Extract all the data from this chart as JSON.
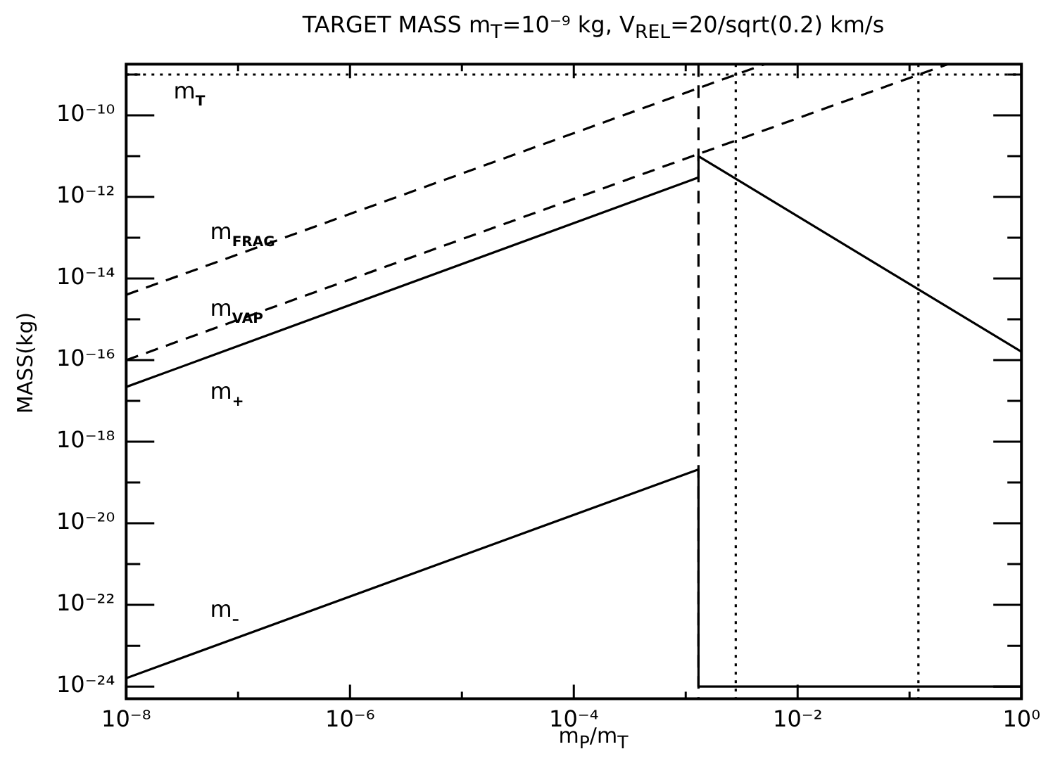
{
  "chart_data": {
    "type": "line",
    "title": "TARGET MASS m$_{T}$=10⁻⁹ kg, V$_{REL}$=20/sqrt(0.2) km/s",
    "xlabel": "m$_{P}$/m$_{T}$",
    "ylabel": "MASS(kg)",
    "log": "xy",
    "grid": false,
    "legend": false,
    "marker": "none",
    "xlim": [
      1e-08,
      1
    ],
    "ylim": [
      5e-25,
      1.8e-09
    ],
    "xticks": [
      {
        "value": 1e-08,
        "label": "10⁻⁸"
      },
      {
        "value": 1e-07,
        "label": null
      },
      {
        "value": 1e-06,
        "label": "10⁻⁶"
      },
      {
        "value": 1e-05,
        "label": null
      },
      {
        "value": 0.0001,
        "label": "10⁻⁴"
      },
      {
        "value": 0.001,
        "label": null
      },
      {
        "value": 0.01,
        "label": "10⁻²"
      },
      {
        "value": 0.1,
        "label": null
      },
      {
        "value": 1,
        "label": "10⁰"
      }
    ],
    "yticks": [
      {
        "value": 1e-24,
        "label": "10⁻²⁴"
      },
      {
        "value": 1e-23,
        "label": null
      },
      {
        "value": 1e-22,
        "label": "10⁻²²"
      },
      {
        "value": 1e-21,
        "label": null
      },
      {
        "value": 1e-20,
        "label": "10⁻²⁰"
      },
      {
        "value": 1e-19,
        "label": null
      },
      {
        "value": 1e-18,
        "label": "10⁻¹⁸"
      },
      {
        "value": 1e-17,
        "label": null
      },
      {
        "value": 1e-16,
        "label": "10⁻¹⁶"
      },
      {
        "value": 1e-15,
        "label": null
      },
      {
        "value": 1e-14,
        "label": "10⁻¹⁴"
      },
      {
        "value": 1e-13,
        "label": null
      },
      {
        "value": 1e-12,
        "label": "10⁻¹²"
      },
      {
        "value": 1e-11,
        "label": null
      },
      {
        "value": 1e-10,
        "label": "10⁻¹⁰"
      },
      {
        "value": 1e-09,
        "label": null
      }
    ],
    "series": [
      {
        "name": "m$_{T}$",
        "color": "#000000",
        "line_style": "dotted",
        "x": [
          1e-08,
          1
        ],
        "values": [
          1e-09,
          1e-09
        ]
      },
      {
        "name": "m$_{FRAG}$",
        "color": "#000000",
        "line_style": "dashed",
        "x": [
          1e-08,
          0.0051
        ],
        "values": [
          4e-15,
          1.8e-09
        ]
      },
      {
        "name": "m$_{VAP}$",
        "color": "#000000",
        "line_style": "dashed",
        "x": [
          1e-08,
          0.22
        ],
        "values": [
          1e-16,
          1.8e-09
        ]
      },
      {
        "name": "m$_{+}$",
        "color": "#000000",
        "line_style": "solid",
        "x": [
          1e-08,
          0.0013,
          0.0013,
          1
        ],
        "values": [
          2.2e-17,
          3e-12,
          1e-11,
          1.6e-16
        ]
      },
      {
        "name": "m$_{–}$",
        "color": "#000000",
        "line_style": "solid",
        "x": [
          1e-08,
          0.0013,
          0.0013,
          1
        ],
        "values": [
          1.6e-24,
          2.1e-19,
          1e-24,
          1e-24
        ]
      }
    ],
    "ref_lines": [
      {
        "axis": "x",
        "value": 0.0013,
        "color": "#000000",
        "line_style": "dashed"
      },
      {
        "axis": "x",
        "value": 0.0028,
        "color": "#000000",
        "line_style": "dotted"
      },
      {
        "axis": "x",
        "value": 0.12,
        "color": "#000000",
        "line_style": "dotted"
      }
    ]
  }
}
